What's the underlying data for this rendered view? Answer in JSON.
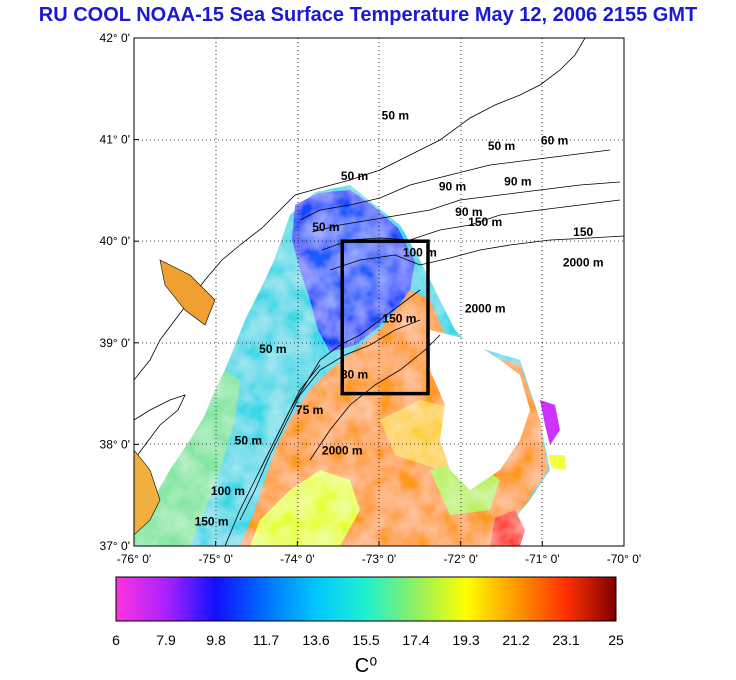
{
  "title": "RU COOL  NOAA-15 Sea Surface Temperature May 12, 2006 2155 GMT",
  "map": {
    "lon_range": [
      -76,
      -70
    ],
    "lat_range": [
      37,
      42
    ],
    "lon_ticks": [
      {
        "value": -76,
        "label": "-76° 0'"
      },
      {
        "value": -75,
        "label": "-75° 0'"
      },
      {
        "value": -74,
        "label": "-74° 0'"
      },
      {
        "value": -73,
        "label": "-73° 0'"
      },
      {
        "value": -72,
        "label": "-72° 0'"
      },
      {
        "value": -71,
        "label": "-71° 0'"
      },
      {
        "value": -70,
        "label": "-70° 0'"
      }
    ],
    "lat_ticks": [
      {
        "value": 42,
        "label": "42° 0'"
      },
      {
        "value": 41,
        "label": "41° 0'"
      },
      {
        "value": 40,
        "label": "40° 0'"
      },
      {
        "value": 39,
        "label": "39° 0'"
      },
      {
        "value": 38,
        "label": "38° 0'"
      },
      {
        "value": 37,
        "label": "37° 0'"
      }
    ],
    "study_box": {
      "lon_min": -73.45,
      "lon_max": -72.4,
      "lat_min": 38.5,
      "lat_max": 40.0
    },
    "contour_labels": [
      {
        "text": "50 m",
        "lon": -72.8,
        "lat": 41.2
      },
      {
        "text": "50 m",
        "lon": -71.5,
        "lat": 40.9
      },
      {
        "text": "50 m",
        "lon": -73.3,
        "lat": 40.6
      },
      {
        "text": "50 m",
        "lon": -73.65,
        "lat": 40.1
      },
      {
        "text": "50 m",
        "lon": -74.3,
        "lat": 38.9
      },
      {
        "text": "50 m",
        "lon": -74.6,
        "lat": 38.0
      },
      {
        "text": "90 m",
        "lon": -72.1,
        "lat": 40.5
      },
      {
        "text": "90 m",
        "lon": -71.3,
        "lat": 40.55
      },
      {
        "text": "90 m",
        "lon": -71.9,
        "lat": 40.25
      },
      {
        "text": "60 m",
        "lon": -70.85,
        "lat": 40.95
      },
      {
        "text": "150 m",
        "lon": -71.7,
        "lat": 40.15
      },
      {
        "text": "150",
        "lon": -70.5,
        "lat": 40.05
      },
      {
        "text": "150 m",
        "lon": -72.75,
        "lat": 39.2
      },
      {
        "text": "150 m",
        "lon": -75.05,
        "lat": 37.2
      },
      {
        "text": "100 m",
        "lon": -72.5,
        "lat": 39.85
      },
      {
        "text": "100 m",
        "lon": -74.85,
        "lat": 37.5
      },
      {
        "text": "80 m",
        "lon": -73.3,
        "lat": 38.65
      },
      {
        "text": "75 m",
        "lon": -73.85,
        "lat": 38.3
      },
      {
        "text": "2000 m",
        "lon": -71.7,
        "lat": 39.3
      },
      {
        "text": "2000 m",
        "lon": -73.45,
        "lat": 37.9
      },
      {
        "text": "2000 m",
        "lon": -70.5,
        "lat": 39.75
      }
    ]
  },
  "colorbar": {
    "min": 6,
    "max": 25,
    "tick_labels": [
      "6",
      "7.9",
      "9.8",
      "11.7",
      "13.6",
      "15.5",
      "17.4",
      "19.3",
      "21.2",
      "23.1",
      "25"
    ],
    "unit": "C⁰",
    "colors": [
      "#ff33dd",
      "#aa22ff",
      "#1010ff",
      "#0070ff",
      "#00c8ff",
      "#20f0d0",
      "#90f060",
      "#ffff00",
      "#ff9900",
      "#ff3000",
      "#800000"
    ]
  }
}
